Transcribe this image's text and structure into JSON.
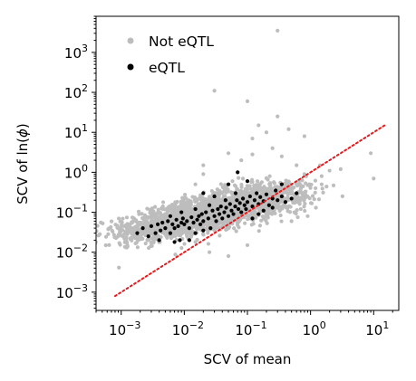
{
  "chart_data": {
    "type": "scatter",
    "xlabel": "SCV of mean",
    "ylabel_prefix": "SCV of ln(",
    "ylabel_phi": "ϕ",
    "ylabel_suffix": ")",
    "x_scale": "log",
    "y_scale": "log",
    "xlim": [
      0.0004,
      25
    ],
    "ylim": [
      0.00035,
      8000
    ],
    "x_ticks": [
      {
        "value": 0.001,
        "base": "10",
        "exp": "−3"
      },
      {
        "value": 0.01,
        "base": "10",
        "exp": "−2"
      },
      {
        "value": 0.1,
        "base": "10",
        "exp": "−1"
      },
      {
        "value": 1,
        "base": "10",
        "exp": "0"
      },
      {
        "value": 10,
        "base": "10",
        "exp": "1"
      }
    ],
    "y_ticks": [
      {
        "value": 0.001,
        "base": "10",
        "exp": "−3"
      },
      {
        "value": 0.01,
        "base": "10",
        "exp": "−2"
      },
      {
        "value": 0.1,
        "base": "10",
        "exp": "−1"
      },
      {
        "value": 1,
        "base": "10",
        "exp": "0"
      },
      {
        "value": 10,
        "base": "10",
        "exp": "1"
      },
      {
        "value": 100,
        "base": "10",
        "exp": "2"
      },
      {
        "value": 1000,
        "base": "10",
        "exp": "3"
      }
    ],
    "legend": {
      "placement": "top-left"
    },
    "series": [
      {
        "name": "Not eQTL",
        "color": "#bdbdbd",
        "points": [
          [
            0.3,
            3500
          ],
          [
            0.03,
            110
          ],
          [
            0.1,
            60
          ],
          [
            0.3,
            25
          ],
          [
            0.15,
            15
          ],
          [
            0.2,
            10
          ],
          [
            0.45,
            12
          ],
          [
            0.8,
            8
          ],
          [
            0.12,
            7
          ],
          [
            9,
            3
          ],
          [
            10,
            0.7
          ],
          [
            3,
            1.2
          ],
          [
            2,
            1.1
          ],
          [
            1.5,
            0.8
          ],
          [
            1.2,
            0.4
          ],
          [
            1.5,
            0.5
          ],
          [
            0.7,
            0.12
          ],
          [
            0.9,
            0.08
          ],
          [
            0.5,
            0.06
          ],
          [
            0.02,
            1.5
          ],
          [
            0.015,
            0.5
          ],
          [
            0.08,
            2
          ],
          [
            0.05,
            3
          ],
          [
            0.25,
            4
          ],
          [
            0.35,
            2.5
          ],
          [
            0.12,
            2.8
          ],
          [
            0.02,
            0.9
          ],
          [
            0.6,
            1.5
          ],
          [
            0.8,
            0.9
          ],
          [
            0.05,
            0.008
          ],
          [
            0.025,
            0.01
          ],
          [
            0.1,
            0.015
          ],
          [
            0.015,
            0.018
          ]
        ],
        "cloud_centroids": [
          {
            "x": 0.001,
            "y": 0.03,
            "n": 50
          },
          {
            "x": 0.0025,
            "y": 0.04,
            "n": 150
          },
          {
            "x": 0.005,
            "y": 0.05,
            "n": 250
          },
          {
            "x": 0.01,
            "y": 0.065,
            "n": 320
          },
          {
            "x": 0.02,
            "y": 0.09,
            "n": 360
          },
          {
            "x": 0.04,
            "y": 0.12,
            "n": 360
          },
          {
            "x": 0.08,
            "y": 0.16,
            "n": 320
          },
          {
            "x": 0.15,
            "y": 0.2,
            "n": 260
          },
          {
            "x": 0.3,
            "y": 0.25,
            "n": 160
          },
          {
            "x": 0.6,
            "y": 0.3,
            "n": 70
          }
        ]
      },
      {
        "name": "eQTL",
        "color": "#000000",
        "points": [
          [
            0.0018,
            0.03
          ],
          [
            0.0022,
            0.04
          ],
          [
            0.0027,
            0.025
          ],
          [
            0.003,
            0.045
          ],
          [
            0.0035,
            0.03
          ],
          [
            0.0038,
            0.05
          ],
          [
            0.0042,
            0.035
          ],
          [
            0.0045,
            0.055
          ],
          [
            0.005,
            0.04
          ],
          [
            0.0055,
            0.06
          ],
          [
            0.006,
            0.03
          ],
          [
            0.0065,
            0.05
          ],
          [
            0.007,
            0.04
          ],
          [
            0.0075,
            0.065
          ],
          [
            0.008,
            0.045
          ],
          [
            0.0085,
            0.02
          ],
          [
            0.009,
            0.055
          ],
          [
            0.0095,
            0.07
          ],
          [
            0.01,
            0.05
          ],
          [
            0.011,
            0.06
          ],
          [
            0.012,
            0.04
          ],
          [
            0.013,
            0.075
          ],
          [
            0.014,
            0.055
          ],
          [
            0.015,
            0.03
          ],
          [
            0.016,
            0.065
          ],
          [
            0.017,
            0.08
          ],
          [
            0.018,
            0.05
          ],
          [
            0.019,
            0.09
          ],
          [
            0.02,
            0.06
          ],
          [
            0.022,
            0.1
          ],
          [
            0.024,
            0.07
          ],
          [
            0.026,
            0.04
          ],
          [
            0.028,
            0.11
          ],
          [
            0.03,
            0.08
          ],
          [
            0.032,
            0.06
          ],
          [
            0.034,
            0.12
          ],
          [
            0.036,
            0.09
          ],
          [
            0.038,
            0.14
          ],
          [
            0.04,
            0.07
          ],
          [
            0.043,
            0.1
          ],
          [
            0.046,
            0.13
          ],
          [
            0.05,
            0.08
          ],
          [
            0.053,
            0.16
          ],
          [
            0.056,
            0.11
          ],
          [
            0.06,
            0.09
          ],
          [
            0.064,
            0.14
          ],
          [
            0.068,
            0.2
          ],
          [
            0.072,
            0.12
          ],
          [
            0.076,
            0.17
          ],
          [
            0.08,
            0.1
          ],
          [
            0.085,
            0.22
          ],
          [
            0.09,
            0.15
          ],
          [
            0.095,
            0.12
          ],
          [
            0.1,
            0.18
          ],
          [
            0.11,
            0.25
          ],
          [
            0.12,
            0.14
          ],
          [
            0.13,
            0.2
          ],
          [
            0.14,
            0.3
          ],
          [
            0.15,
            0.16
          ],
          [
            0.16,
            0.24
          ],
          [
            0.18,
            0.19
          ],
          [
            0.2,
            0.28
          ],
          [
            0.22,
            0.15
          ],
          [
            0.25,
            0.22
          ],
          [
            0.28,
            0.35
          ],
          [
            0.3,
            0.2
          ],
          [
            0.35,
            0.25
          ],
          [
            0.4,
            0.18
          ],
          [
            0.5,
            0.22
          ],
          [
            0.6,
            0.3
          ],
          [
            0.07,
            1.0
          ],
          [
            0.05,
            0.5
          ],
          [
            0.1,
            0.6
          ],
          [
            0.02,
            0.3
          ],
          [
            0.03,
            0.25
          ],
          [
            0.12,
            0.07
          ],
          [
            0.15,
            0.09
          ],
          [
            0.18,
            0.11
          ],
          [
            0.25,
            0.13
          ],
          [
            0.012,
            0.02
          ],
          [
            0.004,
            0.02
          ],
          [
            0.007,
            0.018
          ],
          [
            0.02,
            0.035
          ],
          [
            0.006,
            0.08
          ],
          [
            0.009,
            0.1
          ],
          [
            0.015,
            0.12
          ],
          [
            0.025,
            0.15
          ],
          [
            0.045,
            0.2
          ],
          [
            0.065,
            0.3
          ],
          [
            0.35,
            0.5
          ]
        ]
      }
    ],
    "reference_line": {
      "style": "dotted",
      "color": "#e41a1c",
      "points": [
        [
          0.0008,
          0.0008
        ],
        [
          15,
          15
        ]
      ]
    }
  }
}
